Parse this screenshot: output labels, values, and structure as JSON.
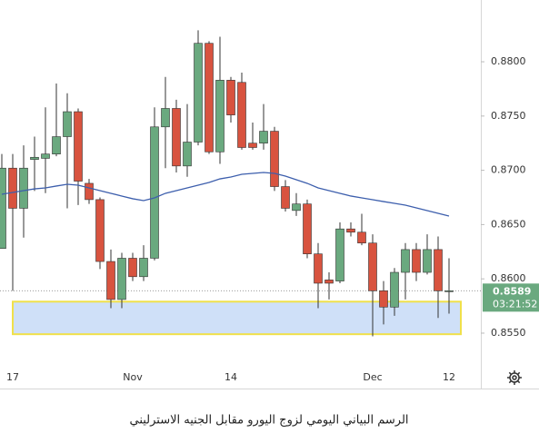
{
  "chart_data": {
    "type": "candlestick",
    "categories": [
      null,
      "17",
      null,
      null,
      null,
      null,
      null,
      null,
      null,
      null,
      null,
      null,
      "Nov",
      null,
      null,
      null,
      null,
      null,
      null,
      null,
      null,
      "14",
      null,
      null,
      null,
      null,
      null,
      null,
      null,
      null,
      null,
      null,
      null,
      null,
      "Dec",
      null,
      null,
      null,
      null,
      null,
      null,
      "12"
    ],
    "open": [
      0.8628,
      0.8702,
      0.8665,
      0.871,
      0.8711,
      0.8715,
      0.8731,
      0.8754,
      0.8688,
      0.8673,
      0.8616,
      0.8581,
      0.8619,
      0.8602,
      0.8619,
      0.874,
      0.8757,
      0.8704,
      0.8726,
      0.8817,
      0.8717,
      0.8783,
      0.8781,
      0.8725,
      0.8725,
      0.8736,
      0.8685,
      0.8663,
      0.8669,
      0.8623,
      0.8599,
      0.8598,
      0.8646,
      0.8643,
      0.8633,
      0.8589,
      0.8574,
      0.8606,
      0.8627,
      0.8606,
      0.8627,
      0.8589
    ],
    "high": [
      0.8715,
      0.8715,
      0.8723,
      0.8731,
      0.8758,
      0.878,
      0.8771,
      0.8757,
      0.8692,
      0.8675,
      0.8627,
      0.8624,
      0.8624,
      0.8631,
      0.8758,
      0.8786,
      0.8765,
      0.8761,
      0.8829,
      0.8819,
      0.8823,
      0.8786,
      0.879,
      0.8744,
      0.8761,
      0.874,
      0.8691,
      0.8679,
      0.8673,
      0.8633,
      0.8606,
      0.8652,
      0.8652,
      0.866,
      0.8641,
      0.8598,
      0.861,
      0.8633,
      0.8633,
      0.8641,
      0.8639,
      0.8619
    ],
    "low": [
      0.8628,
      0.8589,
      0.8638,
      0.8681,
      0.8679,
      0.8713,
      0.8665,
      0.8668,
      0.8669,
      0.8609,
      0.8573,
      0.8573,
      0.8598,
      0.8598,
      0.8617,
      0.8702,
      0.8698,
      0.8694,
      0.8723,
      0.8715,
      0.8706,
      0.8744,
      0.8719,
      0.8719,
      0.8719,
      0.8681,
      0.8662,
      0.8658,
      0.8619,
      0.8573,
      0.8581,
      0.8596,
      0.8639,
      0.8631,
      0.8547,
      0.8558,
      0.8566,
      0.8581,
      0.8598,
      0.8604,
      0.8564,
      0.8568
    ],
    "close": [
      0.8702,
      0.8665,
      0.8702,
      0.8712,
      0.8715,
      0.8731,
      0.8754,
      0.869,
      0.8673,
      0.8616,
      0.8581,
      0.8619,
      0.8602,
      0.8619,
      0.874,
      0.8757,
      0.8704,
      0.8726,
      0.8817,
      0.8717,
      0.8783,
      0.8751,
      0.8721,
      0.8721,
      0.8736,
      0.8685,
      0.8665,
      0.8669,
      0.8623,
      0.8596,
      0.8596,
      0.8646,
      0.8643,
      0.8633,
      0.8589,
      0.8574,
      0.8606,
      0.8627,
      0.8606,
      0.8627,
      0.8589,
      0.8589
    ],
    "ma": [
      0.86779,
      0.86796,
      0.86813,
      0.86829,
      0.86838,
      0.86855,
      0.86871,
      0.86863,
      0.86838,
      0.86813,
      0.86788,
      0.86763,
      0.86738,
      0.86721,
      0.86746,
      0.86788,
      0.86813,
      0.86838,
      0.86863,
      0.86888,
      0.86921,
      0.86938,
      0.86963,
      0.86972,
      0.8698,
      0.86972,
      0.86947,
      0.86913,
      0.8688,
      0.86838,
      0.86813,
      0.86788,
      0.86763,
      0.86746,
      0.86729,
      0.86712,
      0.86696,
      0.86679,
      0.86654,
      0.86629,
      0.86604,
      0.86579
    ],
    "up_color": "#6aa97f",
    "down_color": "#d8533f",
    "ma_color": "#3d5fad",
    "zone": [
      0.8549,
      0.8579
    ],
    "ylim": [
      0.85182,
      0.88569
    ],
    "yticks": [
      {
        "value": 0.855,
        "label": "0.8550"
      },
      {
        "value": 0.86,
        "label": "0.8600"
      },
      {
        "value": 0.865,
        "label": "0.8650"
      },
      {
        "value": 0.87,
        "label": "0.8700"
      },
      {
        "value": 0.875,
        "label": "0.8750"
      },
      {
        "value": 0.88,
        "label": "0.8800"
      }
    ],
    "last_price": {
      "value": 0.8589,
      "label": "0.8589"
    },
    "countdown": "03:21:52",
    "caption": "الرسم البياني اليومي لزوج اليورو مقابل الجنيه الاسترليني"
  }
}
